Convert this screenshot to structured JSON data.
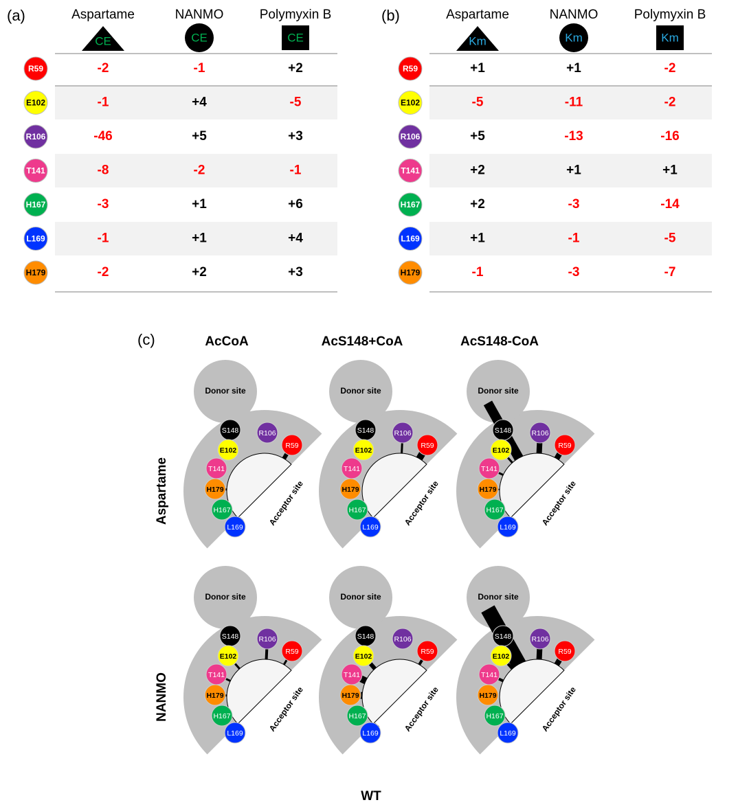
{
  "panel_a": {
    "label": "(a)",
    "symbol": "CE",
    "symbol_color": "#00b050",
    "columns": [
      "Aspartame",
      "NANMO",
      "Polymyxin B"
    ],
    "rows": [
      {
        "residue": "R59",
        "color": "#ff0000",
        "values": [
          "-2",
          "-1",
          "+2"
        ]
      },
      {
        "residue": "E102",
        "color": "#ffff00",
        "values": [
          "-1",
          "+4",
          "-5"
        ]
      },
      {
        "residue": "R106",
        "color": "#7030a0",
        "values": [
          "-46",
          "+5",
          "+3"
        ]
      },
      {
        "residue": "T141",
        "color": "#ee3a8c",
        "values": [
          "-8",
          "-2",
          "-1"
        ]
      },
      {
        "residue": "H167",
        "color": "#00b050",
        "values": [
          "-3",
          "+1",
          "+6"
        ]
      },
      {
        "residue": "L169",
        "color": "#0033ff",
        "values": [
          "-1",
          "+1",
          "+4"
        ]
      },
      {
        "residue": "H179",
        "color": "#ff8c00",
        "values": [
          "-2",
          "+2",
          "+3"
        ]
      }
    ]
  },
  "panel_b": {
    "label": "(b)",
    "symbol": "Km",
    "symbol_color": "#2aa9e0",
    "columns": [
      "Aspartame",
      "NANMO",
      "Polymyxin B"
    ],
    "rows": [
      {
        "residue": "R59",
        "color": "#ff0000",
        "values": [
          "+1",
          "+1",
          "-2"
        ]
      },
      {
        "residue": "E102",
        "color": "#ffff00",
        "values": [
          "-5",
          "-11",
          "-2"
        ]
      },
      {
        "residue": "R106",
        "color": "#7030a0",
        "values": [
          "+5",
          "-13",
          "-16"
        ]
      },
      {
        "residue": "T141",
        "color": "#ee3a8c",
        "values": [
          "+2",
          "+1",
          "+1"
        ]
      },
      {
        "residue": "H167",
        "color": "#00b050",
        "values": [
          "+2",
          "-3",
          "-14"
        ]
      },
      {
        "residue": "L169",
        "color": "#0033ff",
        "values": [
          "+1",
          "-1",
          "-5"
        ]
      },
      {
        "residue": "H179",
        "color": "#ff8c00",
        "values": [
          "-1",
          "-3",
          "-7"
        ]
      }
    ]
  },
  "panel_c": {
    "label": "(c)",
    "columns": [
      "AcCoA",
      "AcS148+CoA",
      "AcS148-CoA"
    ],
    "rows": [
      "Aspartame",
      "NANMO"
    ],
    "donor": "Donor site",
    "acceptor": "Acceptor site",
    "residues": [
      {
        "label": "S148",
        "color": "#000000"
      },
      {
        "label": "R106",
        "color": "#7030a0"
      },
      {
        "label": "R59",
        "color": "#ff0000"
      },
      {
        "label": "E102",
        "color": "#ffff00"
      },
      {
        "label": "T141",
        "color": "#ee3a8c"
      },
      {
        "label": "H179",
        "color": "#ff8c00"
      },
      {
        "label": "H167",
        "color": "#00b050"
      },
      {
        "label": "L169",
        "color": "#0033ff"
      }
    ],
    "footer": "WT"
  }
}
